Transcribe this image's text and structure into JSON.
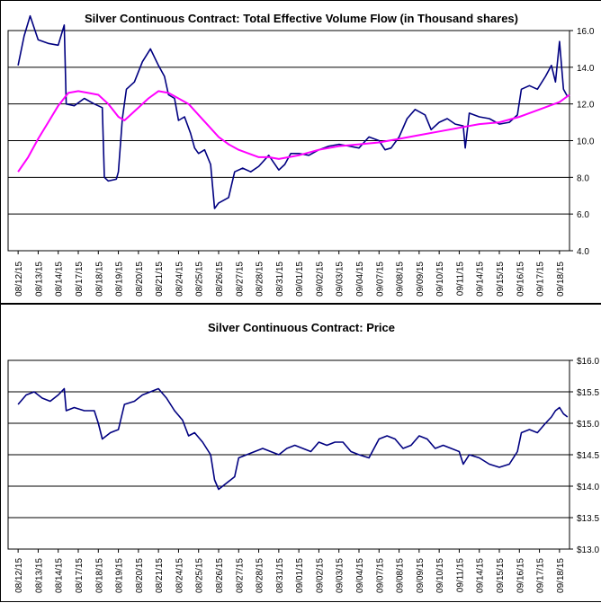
{
  "chart_data": [
    {
      "type": "line",
      "title": "Silver Continuous Contract: Total Effective Volume Flow (in Thousand shares)",
      "xlabel": "",
      "ylabel": "",
      "ylim": [
        4.0,
        16.0
      ],
      "yticks": [
        "4.0",
        "6.0",
        "8.0",
        "10.0",
        "12.0",
        "14.0",
        "16.0"
      ],
      "y_axis_side": "right",
      "grid": "horizontal",
      "categories": [
        "08/12/15",
        "08/13/15",
        "08/14/15",
        "08/17/15",
        "08/18/15",
        "08/19/15",
        "08/20/15",
        "08/21/15",
        "08/24/15",
        "08/25/15",
        "08/26/15",
        "08/27/15",
        "08/28/15",
        "08/31/15",
        "09/01/15",
        "09/02/15",
        "09/03/15",
        "09/04/15",
        "09/07/15",
        "09/08/15",
        "09/09/15",
        "09/10/15",
        "09/11/15",
        "09/14/15",
        "09/15/15",
        "09/16/15",
        "09/17/15",
        "09/18/15"
      ],
      "series": [
        {
          "color": "#000080",
          "points": [
            [
              0,
              14.1
            ],
            [
              0.3,
              15.7
            ],
            [
              0.6,
              16.8
            ],
            [
              1,
              15.5
            ],
            [
              1.5,
              15.3
            ],
            [
              2,
              15.2
            ],
            [
              2.3,
              16.3
            ],
            [
              2.4,
              12.0
            ],
            [
              2.8,
              11.9
            ],
            [
              3.3,
              12.3
            ],
            [
              3.8,
              12.0
            ],
            [
              4.2,
              11.8
            ],
            [
              4.3,
              8.0
            ],
            [
              4.5,
              7.8
            ],
            [
              4.9,
              7.9
            ],
            [
              5,
              8.3
            ],
            [
              5.2,
              11.2
            ],
            [
              5.4,
              12.8
            ],
            [
              5.8,
              13.2
            ],
            [
              6.2,
              14.3
            ],
            [
              6.6,
              15.0
            ],
            [
              7,
              14.1
            ],
            [
              7.3,
              13.5
            ],
            [
              7.5,
              12.5
            ],
            [
              7.8,
              12.3
            ],
            [
              8,
              11.1
            ],
            [
              8.3,
              11.3
            ],
            [
              8.6,
              10.4
            ],
            [
              8.8,
              9.6
            ],
            [
              9,
              9.3
            ],
            [
              9.3,
              9.5
            ],
            [
              9.6,
              8.7
            ],
            [
              9.8,
              6.3
            ],
            [
              10,
              6.6
            ],
            [
              10.5,
              6.9
            ],
            [
              10.8,
              8.3
            ],
            [
              11.2,
              8.5
            ],
            [
              11.6,
              8.3
            ],
            [
              12,
              8.6
            ],
            [
              12.5,
              9.2
            ],
            [
              13,
              8.4
            ],
            [
              13.3,
              8.7
            ],
            [
              13.6,
              9.3
            ],
            [
              14,
              9.3
            ],
            [
              14.5,
              9.2
            ],
            [
              15,
              9.5
            ],
            [
              15.5,
              9.7
            ],
            [
              16,
              9.8
            ],
            [
              16.5,
              9.7
            ],
            [
              17,
              9.6
            ],
            [
              17.5,
              10.2
            ],
            [
              18,
              10.0
            ],
            [
              18.3,
              9.5
            ],
            [
              18.6,
              9.6
            ],
            [
              19,
              10.2
            ],
            [
              19.4,
              11.2
            ],
            [
              19.8,
              11.7
            ],
            [
              20.3,
              11.4
            ],
            [
              20.6,
              10.6
            ],
            [
              21,
              11.0
            ],
            [
              21.4,
              11.2
            ],
            [
              21.8,
              10.9
            ],
            [
              22.2,
              10.8
            ],
            [
              22.3,
              9.6
            ],
            [
              22.5,
              11.5
            ],
            [
              23,
              11.3
            ],
            [
              23.5,
              11.2
            ],
            [
              24,
              10.9
            ],
            [
              24.5,
              11.0
            ],
            [
              24.9,
              11.4
            ],
            [
              25.1,
              12.8
            ],
            [
              25.5,
              13.0
            ],
            [
              25.9,
              12.8
            ],
            [
              26.3,
              13.5
            ],
            [
              26.6,
              14.1
            ],
            [
              26.8,
              13.2
            ],
            [
              27,
              15.4
            ],
            [
              27.2,
              12.8
            ],
            [
              27.4,
              12.4
            ]
          ]
        },
        {
          "color": "#ff00ff",
          "points": [
            [
              0,
              8.3
            ],
            [
              0.5,
              9.1
            ],
            [
              1,
              10.1
            ],
            [
              1.5,
              11.0
            ],
            [
              2,
              11.9
            ],
            [
              2.5,
              12.6
            ],
            [
              3,
              12.7
            ],
            [
              3.5,
              12.6
            ],
            [
              4,
              12.5
            ],
            [
              4.5,
              12.0
            ],
            [
              5,
              11.3
            ],
            [
              5.3,
              11.1
            ],
            [
              5.7,
              11.5
            ],
            [
              6,
              11.8
            ],
            [
              6.5,
              12.3
            ],
            [
              7,
              12.7
            ],
            [
              7.5,
              12.6
            ],
            [
              8,
              12.3
            ],
            [
              8.5,
              12.0
            ],
            [
              9,
              11.4
            ],
            [
              9.5,
              10.8
            ],
            [
              10,
              10.2
            ],
            [
              10.5,
              9.8
            ],
            [
              11,
              9.5
            ],
            [
              11.5,
              9.3
            ],
            [
              12,
              9.1
            ],
            [
              12.5,
              9.1
            ],
            [
              13,
              9.0
            ],
            [
              13.5,
              9.1
            ],
            [
              14,
              9.2
            ],
            [
              15,
              9.5
            ],
            [
              16,
              9.7
            ],
            [
              17,
              9.8
            ],
            [
              18,
              9.9
            ],
            [
              19,
              10.1
            ],
            [
              20,
              10.3
            ],
            [
              21,
              10.5
            ],
            [
              22,
              10.7
            ],
            [
              23,
              10.9
            ],
            [
              24,
              11.0
            ],
            [
              25,
              11.3
            ],
            [
              26,
              11.7
            ],
            [
              27,
              12.1
            ],
            [
              27.5,
              12.5
            ]
          ]
        }
      ]
    },
    {
      "type": "line",
      "title": "Silver Continuous Contract: Price",
      "xlabel": "",
      "ylabel": "",
      "ylim": [
        13.0,
        16.0
      ],
      "yticks": [
        "$13.0",
        "$13.5",
        "$14.0",
        "$14.5",
        "$15.0",
        "$15.5",
        "$16.0"
      ],
      "y_axis_side": "right",
      "grid": "horizontal",
      "categories": [
        "08/12/15",
        "08/13/15",
        "08/14/15",
        "08/17/15",
        "08/18/15",
        "08/19/15",
        "08/20/15",
        "08/21/15",
        "08/24/15",
        "08/25/15",
        "08/26/15",
        "08/27/15",
        "08/28/15",
        "08/31/15",
        "09/01/15",
        "09/02/15",
        "09/03/15",
        "09/04/15",
        "09/07/15",
        "09/08/15",
        "09/09/15",
        "09/10/15",
        "09/11/15",
        "09/14/15",
        "09/15/15",
        "09/16/15",
        "09/17/15",
        "09/18/15"
      ],
      "series": [
        {
          "color": "#000080",
          "points": [
            [
              0,
              15.3
            ],
            [
              0.4,
              15.45
            ],
            [
              0.8,
              15.5
            ],
            [
              1.2,
              15.4
            ],
            [
              1.6,
              15.35
            ],
            [
              2,
              15.45
            ],
            [
              2.3,
              15.55
            ],
            [
              2.4,
              15.2
            ],
            [
              2.8,
              15.25
            ],
            [
              3.3,
              15.2
            ],
            [
              3.8,
              15.2
            ],
            [
              4,
              15.0
            ],
            [
              4.2,
              14.75
            ],
            [
              4.6,
              14.85
            ],
            [
              5,
              14.9
            ],
            [
              5.3,
              15.3
            ],
            [
              5.8,
              15.35
            ],
            [
              6.2,
              15.45
            ],
            [
              6.6,
              15.5
            ],
            [
              7,
              15.55
            ],
            [
              7.4,
              15.4
            ],
            [
              7.8,
              15.2
            ],
            [
              8.2,
              15.05
            ],
            [
              8.5,
              14.8
            ],
            [
              8.8,
              14.85
            ],
            [
              9.2,
              14.7
            ],
            [
              9.6,
              14.5
            ],
            [
              9.8,
              14.1
            ],
            [
              10,
              13.95
            ],
            [
              10.4,
              14.05
            ],
            [
              10.8,
              14.15
            ],
            [
              11,
              14.45
            ],
            [
              11.4,
              14.5
            ],
            [
              11.8,
              14.55
            ],
            [
              12.2,
              14.6
            ],
            [
              12.6,
              14.55
            ],
            [
              13,
              14.5
            ],
            [
              13.4,
              14.6
            ],
            [
              13.8,
              14.65
            ],
            [
              14.2,
              14.6
            ],
            [
              14.6,
              14.55
            ],
            [
              15,
              14.7
            ],
            [
              15.4,
              14.65
            ],
            [
              15.8,
              14.7
            ],
            [
              16.2,
              14.7
            ],
            [
              16.6,
              14.55
            ],
            [
              17,
              14.5
            ],
            [
              17.5,
              14.45
            ],
            [
              18,
              14.75
            ],
            [
              18.4,
              14.8
            ],
            [
              18.8,
              14.75
            ],
            [
              19.2,
              14.6
            ],
            [
              19.6,
              14.65
            ],
            [
              20,
              14.8
            ],
            [
              20.4,
              14.75
            ],
            [
              20.8,
              14.6
            ],
            [
              21.2,
              14.65
            ],
            [
              21.6,
              14.6
            ],
            [
              22,
              14.55
            ],
            [
              22.2,
              14.35
            ],
            [
              22.5,
              14.5
            ],
            [
              23,
              14.45
            ],
            [
              23.5,
              14.35
            ],
            [
              24,
              14.3
            ],
            [
              24.5,
              14.35
            ],
            [
              24.9,
              14.55
            ],
            [
              25.1,
              14.85
            ],
            [
              25.5,
              14.9
            ],
            [
              25.9,
              14.85
            ],
            [
              26.3,
              15.0
            ],
            [
              26.6,
              15.1
            ],
            [
              26.8,
              15.2
            ],
            [
              27,
              15.25
            ],
            [
              27.2,
              15.15
            ],
            [
              27.4,
              15.1
            ]
          ]
        }
      ]
    }
  ]
}
